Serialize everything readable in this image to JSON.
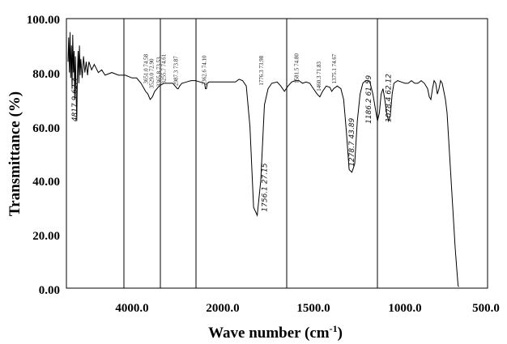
{
  "chart_data": {
    "type": "line",
    "title": "",
    "xlabel": "Wave number (cm",
    "xlabel_sup": "-1",
    "xlabel_close": ")",
    "ylabel": "Transmittance (%)",
    "ylim": [
      0,
      100
    ],
    "y_ticks": [
      "100.00",
      "80.00",
      "60.00",
      "40.00",
      "20.00",
      "0.00"
    ],
    "x_ticks": [
      "4000.0",
      "2000.0",
      "1500.0",
      "1000.0",
      "500.0"
    ],
    "grid": false,
    "x_axis_note": "two-scale wavenumber axis, 4000 to 2000 and 2000 to 500",
    "annotations": [
      {
        "label": "4817.9 62.4",
        "x": 4817.9,
        "y": 62.4
      },
      {
        "label": "3651.0 74.58",
        "x": 3651.0,
        "y": 74.58
      },
      {
        "label": "3529.0 72.90",
        "x": 3529.0,
        "y": 72.9
      },
      {
        "label": "3365.8 73.53",
        "x": 3365.8,
        "y": 73.53
      },
      {
        "label": "3255.7 74.61",
        "x": 3255.7,
        "y": 74.61
      },
      {
        "label": "2987.3 73.87",
        "x": 2987.3,
        "y": 73.87
      },
      {
        "label": "2362.6 74.10",
        "x": 2362.6,
        "y": 74.1
      },
      {
        "label": "1776.3 73.98",
        "x": 1776.3,
        "y": 73.98
      },
      {
        "label": "1756.1 27.15",
        "x": 1756.1,
        "y": 27.15
      },
      {
        "label": "1581.5 74.80",
        "x": 1581.5,
        "y": 74.8
      },
      {
        "label": "1460.3 71.83",
        "x": 1460.3,
        "y": 71.83
      },
      {
        "label": "1375.1 74.67",
        "x": 1375.1,
        "y": 74.67
      },
      {
        "label": "1278.7 43.89",
        "x": 1278.7,
        "y": 43.89
      },
      {
        "label": "1186.2 61.59",
        "x": 1186.2,
        "y": 61.59
      },
      {
        "label": "1078.4 62.12",
        "x": 1078.4,
        "y": 62.12
      }
    ],
    "series": [
      {
        "color": "#000000",
        "points": [
          [
            4950,
            84
          ],
          [
            4940,
            93
          ],
          [
            4930,
            80
          ],
          [
            4920,
            95
          ],
          [
            4910,
            78
          ],
          [
            4900,
            90
          ],
          [
            4890,
            74
          ],
          [
            4880,
            94
          ],
          [
            4870,
            80
          ],
          [
            4860,
            88
          ],
          [
            4850,
            70
          ],
          [
            4840,
            86
          ],
          [
            4830,
            72
          ],
          [
            4820,
            62
          ],
          [
            4810,
            80
          ],
          [
            4800,
            88
          ],
          [
            4790,
            76
          ],
          [
            4780,
            90
          ],
          [
            4770,
            79
          ],
          [
            4760,
            85
          ],
          [
            4740,
            78
          ],
          [
            4720,
            86
          ],
          [
            4700,
            80
          ],
          [
            4680,
            84
          ],
          [
            4660,
            79
          ],
          [
            4640,
            84
          ],
          [
            4600,
            81
          ],
          [
            4560,
            83
          ],
          [
            4500,
            80
          ],
          [
            4450,
            81
          ],
          [
            4400,
            79
          ],
          [
            4300,
            80
          ],
          [
            4200,
            79
          ],
          [
            4100,
            79
          ],
          [
            4000,
            78
          ],
          [
            3900,
            78
          ],
          [
            3800,
            76
          ],
          [
            3700,
            73
          ],
          [
            3650,
            72
          ],
          [
            3600,
            70
          ],
          [
            3550,
            71
          ],
          [
            3500,
            73
          ],
          [
            3450,
            74
          ],
          [
            3400,
            75
          ],
          [
            3300,
            76
          ],
          [
            3200,
            76
          ],
          [
            3100,
            76
          ],
          [
            3050,
            75
          ],
          [
            3000,
            74
          ],
          [
            2980,
            74
          ],
          [
            2950,
            75
          ],
          [
            2900,
            76
          ],
          [
            2800,
            76.5
          ],
          [
            2700,
            77
          ],
          [
            2600,
            77
          ],
          [
            2500,
            76.5
          ],
          [
            2400,
            76
          ],
          [
            2380,
            74
          ],
          [
            2360,
            74
          ],
          [
            2340,
            76
          ],
          [
            2300,
            76.5
          ],
          [
            2200,
            76.5
          ],
          [
            2100,
            76.5
          ],
          [
            2000,
            76.5
          ],
          [
            1960,
            76.5
          ],
          [
            1930,
            76.5
          ],
          [
            1910,
            77.5
          ],
          [
            1890,
            77
          ],
          [
            1870,
            75
          ],
          [
            1850,
            60
          ],
          [
            1830,
            30
          ],
          [
            1810,
            27
          ],
          [
            1790,
            40
          ],
          [
            1770,
            68
          ],
          [
            1750,
            74
          ],
          [
            1730,
            76
          ],
          [
            1700,
            76.5
          ],
          [
            1680,
            75
          ],
          [
            1660,
            73
          ],
          [
            1640,
            75
          ],
          [
            1620,
            76.5
          ],
          [
            1600,
            77
          ],
          [
            1580,
            77
          ],
          [
            1560,
            76
          ],
          [
            1540,
            76.5
          ],
          [
            1520,
            76
          ],
          [
            1500,
            74
          ],
          [
            1480,
            72
          ],
          [
            1465,
            71
          ],
          [
            1450,
            73
          ],
          [
            1430,
            75
          ],
          [
            1410,
            74.5
          ],
          [
            1400,
            73
          ],
          [
            1390,
            74
          ],
          [
            1370,
            75
          ],
          [
            1350,
            74
          ],
          [
            1335,
            70
          ],
          [
            1320,
            58
          ],
          [
            1305,
            44
          ],
          [
            1290,
            43
          ],
          [
            1275,
            46
          ],
          [
            1260,
            62
          ],
          [
            1245,
            72
          ],
          [
            1230,
            76
          ],
          [
            1215,
            77
          ],
          [
            1200,
            77
          ],
          [
            1190,
            76
          ],
          [
            1175,
            72
          ],
          [
            1160,
            66
          ],
          [
            1150,
            62
          ],
          [
            1140,
            65
          ],
          [
            1130,
            72
          ],
          [
            1120,
            74
          ],
          [
            1110,
            70
          ],
          [
            1100,
            65
          ],
          [
            1090,
            62
          ],
          [
            1080,
            64
          ],
          [
            1070,
            72
          ],
          [
            1060,
            76
          ],
          [
            1040,
            77
          ],
          [
            1020,
            76.5
          ],
          [
            1000,
            76
          ],
          [
            980,
            76
          ],
          [
            960,
            77
          ],
          [
            940,
            76
          ],
          [
            920,
            76
          ],
          [
            900,
            77
          ],
          [
            880,
            76
          ],
          [
            860,
            74
          ],
          [
            850,
            71
          ],
          [
            840,
            70
          ],
          [
            830,
            74
          ],
          [
            820,
            77
          ],
          [
            810,
            76
          ],
          [
            800,
            72
          ],
          [
            790,
            74
          ],
          [
            780,
            77
          ],
          [
            770,
            76
          ],
          [
            760,
            73
          ],
          [
            750,
            70
          ],
          [
            740,
            65
          ],
          [
            730,
            55
          ],
          [
            720,
            45
          ],
          [
            710,
            35
          ],
          [
            700,
            25
          ],
          [
            690,
            15
          ],
          [
            680,
            7
          ],
          [
            672,
            1
          ],
          [
            668,
            0.5
          ]
        ]
      }
    ]
  }
}
